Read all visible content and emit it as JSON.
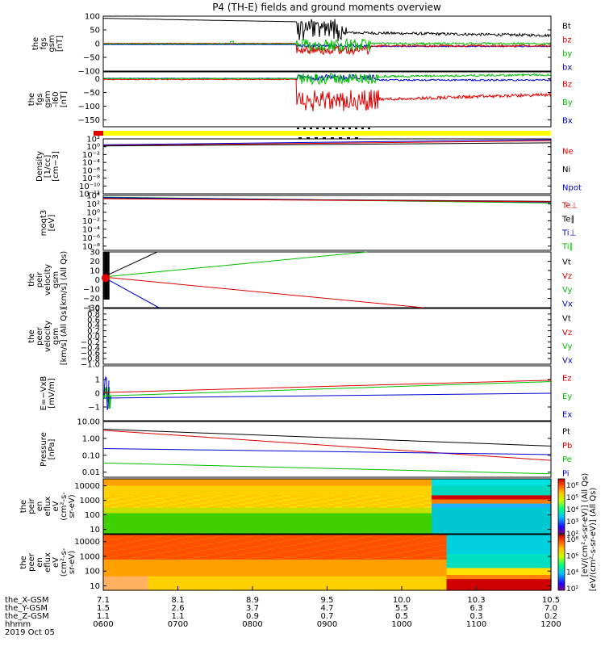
{
  "title": "P4 (TH-E) fields and ground moments overview",
  "chart_data": [
    {
      "type": "line",
      "panel": "fgs-gsm",
      "ylabel": [
        "the",
        "fgs",
        "gsm",
        "[nT]"
      ],
      "ylim": [
        -100,
        100
      ],
      "ytick_labels": [
        "100",
        "50",
        "0",
        "−50",
        "−100"
      ],
      "ytick_values": [
        100,
        50,
        0,
        -50,
        -100
      ],
      "legend": [
        {
          "label": "Bt",
          "color": "#000000"
        },
        {
          "label": "bz",
          "color": "#e00000"
        },
        {
          "label": "by",
          "color": "#00c000"
        },
        {
          "label": "bx",
          "color": "#0000d0"
        }
      ]
    },
    {
      "type": "line",
      "panel": "fgs-gsm-l60",
      "ylabel": [
        "the",
        "fgs",
        "gsm",
        "-l60",
        "[nT]"
      ],
      "ylim": [
        -175,
        25
      ],
      "ytick_labels": [
        "0",
        "−50",
        "−100",
        "−150"
      ],
      "ytick_values": [
        0,
        -50,
        -100,
        -150
      ],
      "legend": [
        {
          "label": "Bz",
          "color": "#e00000"
        },
        {
          "label": "By",
          "color": "#00c000"
        },
        {
          "label": "Bx",
          "color": "#0000d0"
        }
      ]
    },
    {
      "type": "line",
      "panel": "density",
      "ylabel": [
        "Density",
        "[1/cc]",
        "[cm−3]"
      ],
      "ylog": true,
      "ylim": [
        1e-12,
        100
      ],
      "ytick_labels": [
        "10²",
        "10⁰",
        "10⁻²",
        "10⁻⁴",
        "10⁻⁶",
        "10⁻⁸",
        "10⁻¹⁰",
        "10⁻¹²"
      ],
      "ytick_values": [
        2,
        0,
        -2,
        -4,
        -6,
        -8,
        -10,
        -12
      ],
      "legend": [
        {
          "label": "Ne",
          "color": "#e00000"
        },
        {
          "label": "Ni",
          "color": "#000000"
        },
        {
          "label": "Npot",
          "color": "#0000d0"
        }
      ]
    },
    {
      "type": "line",
      "panel": "temperature",
      "ylabel": [
        "moqt3",
        "[eV]"
      ],
      "ylog": true,
      "ylim": [
        1e-09,
        10000
      ],
      "ytick_labels": [
        "10⁴",
        "10²",
        "10⁰",
        "10⁻²",
        "10⁻⁴",
        "10⁻⁶",
        "10⁻⁸"
      ],
      "ytick_values": [
        4,
        2,
        0,
        -2,
        -4,
        -6,
        -8
      ],
      "legend": [
        {
          "label": "Te⊥",
          "color": "#e00000"
        },
        {
          "label": "Te∥",
          "color": "#000000"
        },
        {
          "label": "Ti⊥",
          "color": "#0000d0"
        },
        {
          "label": "Ti∥",
          "color": "#00c000"
        }
      ]
    },
    {
      "type": "line",
      "panel": "peir-velocity",
      "ylabel": [
        "the",
        "peir",
        "velocity",
        "gsm",
        "[km/s] (All Qs)"
      ],
      "ylim": [
        -30,
        30
      ],
      "ytick_labels": [
        "30",
        "20",
        "10",
        "0",
        "−10",
        "−20",
        "−30"
      ],
      "ytick_values": [
        30,
        20,
        10,
        0,
        -10,
        -20,
        -30
      ],
      "legend": [
        {
          "label": "Vt",
          "color": "#000000"
        },
        {
          "label": "Vz",
          "color": "#e00000"
        },
        {
          "label": "Vy",
          "color": "#00c000"
        },
        {
          "label": "Vx",
          "color": "#0000d0"
        }
      ]
    },
    {
      "type": "line",
      "panel": "peer-velocity",
      "ylabel": [
        "the",
        "peer",
        "velocity",
        "gsm",
        "[km/s] (All Qs)"
      ],
      "ylim": [
        -1,
        1
      ],
      "ytick_labels": [
        "1.0",
        "0.8",
        "0.6",
        "0.4",
        "0.2",
        "0.0",
        "−0.2",
        "−0.4",
        "−0.6",
        "−0.8",
        "−1.0"
      ],
      "ytick_values": [
        1.0,
        0.8,
        0.6,
        0.4,
        0.2,
        0.0,
        -0.2,
        -0.4,
        -0.6,
        -0.8,
        -1.0
      ],
      "legend": [
        {
          "label": "Vt",
          "color": "#000000"
        },
        {
          "label": "Vz",
          "color": "#e00000"
        },
        {
          "label": "Vy",
          "color": "#00c000"
        },
        {
          "label": "Vx",
          "color": "#0000d0"
        }
      ]
    },
    {
      "type": "line",
      "panel": "e-field",
      "ylabel": [
        "E=−VxB",
        "[mV/m]"
      ],
      "ylim": [
        -2,
        2
      ],
      "ytick_labels": [
        "1",
        "0",
        "−1"
      ],
      "ytick_values": [
        1,
        0,
        -1
      ],
      "legend": [
        {
          "label": "Ez",
          "color": "#e00000"
        },
        {
          "label": "Ey",
          "color": "#00c000"
        },
        {
          "label": "Ex",
          "color": "#0000d0"
        }
      ]
    },
    {
      "type": "line",
      "panel": "pressure",
      "ylabel": [
        "Pressure",
        "[nPa]"
      ],
      "ylog": true,
      "ylim": [
        0.005,
        10
      ],
      "ytick_labels": [
        "10.00",
        "1.00",
        "0.10",
        "0.01"
      ],
      "ytick_values": [
        10,
        1,
        0.1,
        0.01
      ],
      "legend": [
        {
          "label": "Pt",
          "color": "#000000"
        },
        {
          "label": "Pb",
          "color": "#e00000"
        },
        {
          "label": "Pe",
          "color": "#00c000"
        },
        {
          "label": "Pi",
          "color": "#0000d0"
        }
      ]
    },
    {
      "type": "heatmap",
      "panel": "peir-en-eflux",
      "ylabel": [
        "the",
        "peir",
        "en",
        "eflux",
        "eV",
        "(cm²-s-",
        "sr-eV)"
      ],
      "ylog": true,
      "ytick_labels": [
        "10000",
        "1000",
        "100",
        "10"
      ],
      "ytick_values": [
        10000,
        1000,
        100,
        10
      ]
    },
    {
      "type": "heatmap",
      "panel": "peer-en-eflux",
      "ylabel": [
        "the",
        "peer",
        "en",
        "eflux",
        "eV",
        "(cm²-s-",
        "sr-eV)"
      ],
      "ylog": true,
      "ytick_labels": [
        "10000",
        "1000",
        "100",
        "10"
      ],
      "ytick_values": [
        10000,
        1000,
        100,
        10
      ]
    }
  ],
  "colorbar": {
    "tick_labels": [
      "10⁶",
      "10⁵",
      "10⁴",
      "10³",
      "10²"
    ],
    "tick_labels_lower": [
      "10⁸",
      "10⁶",
      "10⁴",
      "10²"
    ],
    "label": "[eV/(cm²-s-sr-eV)] (All Qs)",
    "overlap_label": "[eV/(cm²-s-sr-eV)] (All Qs)"
  },
  "xaxis": {
    "row_labels": [
      "the_X-GSM",
      "the_Y-GSM",
      "the_Z-GSM",
      "hhmm",
      "2019 Oct 05"
    ],
    "ticks": [
      {
        "x": "7.1",
        "y": "1.5",
        "z": "1.1",
        "hhmm": "0600"
      },
      {
        "x": "8.1",
        "y": "2.6",
        "z": "1.1",
        "hhmm": "0700"
      },
      {
        "x": "8.9",
        "y": "3.7",
        "z": "0.9",
        "hhmm": "0800"
      },
      {
        "x": "9.5",
        "y": "4.7",
        "z": "0.7",
        "hhmm": "0900"
      },
      {
        "x": "10.0",
        "y": "5.5",
        "z": "0.5",
        "hhmm": "1000"
      },
      {
        "x": "10.3",
        "y": "6.3",
        "z": "0.3",
        "hhmm": "1100"
      },
      {
        "x": "10.5",
        "y": "7.0",
        "z": "0.2",
        "hhmm": "1200"
      }
    ],
    "time_start": "0600",
    "time_end": "1200"
  },
  "colors": {
    "black": "#000000",
    "red": "#e00000",
    "green": "#00c000",
    "blue": "#0000d0",
    "yellow": "#ffff00"
  }
}
